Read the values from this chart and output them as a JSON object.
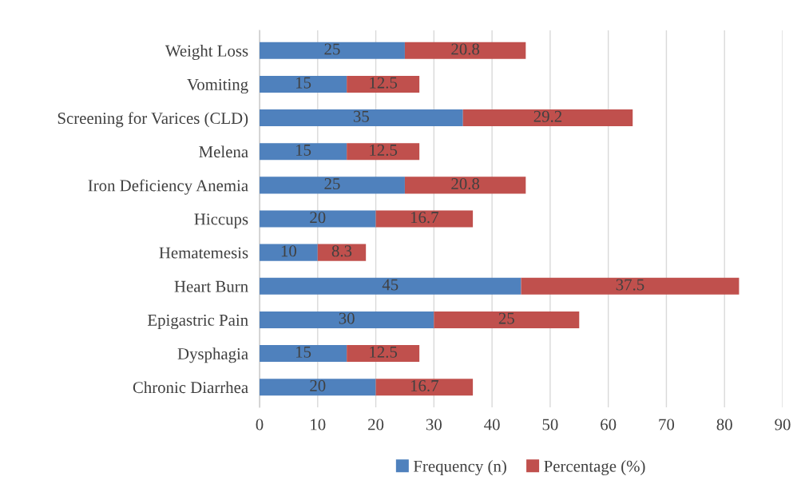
{
  "chart_data": {
    "type": "bar",
    "orientation": "horizontal",
    "stacked": true,
    "categories": [
      "Weight Loss",
      "Vomiting",
      "Screening for Varices (CLD)",
      "Melena",
      "Iron Deficiency Anemia",
      "Hiccups",
      "Hematemesis",
      "Heart Burn",
      "Epigastric Pain",
      "Dysphagia",
      "Chronic Diarrhea"
    ],
    "series": [
      {
        "name": "Frequency (n)",
        "color": "#4f81bd",
        "values": [
          25,
          15,
          35,
          15,
          25,
          20,
          10,
          45,
          30,
          15,
          20
        ]
      },
      {
        "name": "Percentage (%)",
        "color": "#c0504d",
        "values": [
          20.8,
          12.5,
          29.2,
          12.5,
          20.8,
          16.7,
          8.3,
          37.5,
          25,
          12.5,
          16.7
        ]
      }
    ],
    "xlim": [
      0,
      90
    ],
    "xticks": [
      0,
      10,
      20,
      30,
      40,
      50,
      60,
      70,
      80,
      90
    ],
    "grid": "x",
    "legend": "bottom",
    "data_labels": true
  }
}
